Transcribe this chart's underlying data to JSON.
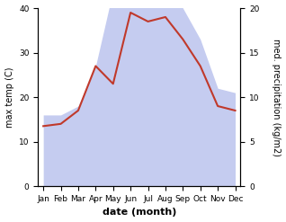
{
  "months": [
    "Jan",
    "Feb",
    "Mar",
    "Apr",
    "May",
    "Jun",
    "Jul",
    "Aug",
    "Sep",
    "Oct",
    "Nov",
    "Dec"
  ],
  "temperature": [
    13.5,
    14.0,
    17.0,
    27.0,
    23.0,
    39.0,
    37.0,
    38.0,
    33.0,
    27.0,
    18.0,
    17.0
  ],
  "precipitation_mm": [
    8.0,
    8.0,
    9.0,
    13.5,
    22.0,
    22.0,
    23.0,
    24.0,
    20.0,
    16.5,
    11.0,
    10.5
  ],
  "temp_color": "#c0392b",
  "precip_fill_color": "#c5ccf0",
  "precip_edge_color": "#aab4e8",
  "temp_ylim": [
    0,
    40
  ],
  "precip_ylim": [
    0,
    20
  ],
  "precip_yticks": [
    0,
    5,
    10,
    15,
    20
  ],
  "temp_yticks": [
    0,
    10,
    20,
    30,
    40
  ],
  "xlabel": "date (month)",
  "ylabel_left": "max temp (C)",
  "ylabel_right": "med. precipitation (kg/m2)",
  "background_color": "#ffffff",
  "temp_linewidth": 1.5,
  "label_fontsize": 7,
  "tick_fontsize": 6.5,
  "xlabel_fontsize": 8
}
